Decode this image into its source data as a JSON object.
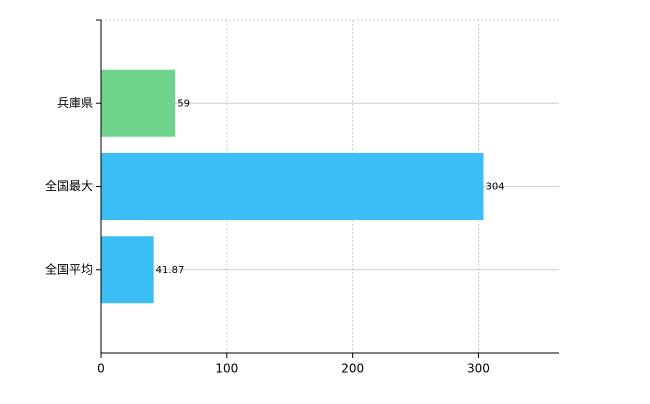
{
  "chart_data": {
    "type": "hbar",
    "categories": [
      "兵庫県",
      "全国最大",
      "全国平均"
    ],
    "values": [
      59,
      304,
      41.87
    ],
    "colors": [
      "#6fd38c",
      "#3bbdf5",
      "#3bbdf5"
    ],
    "xlim": [
      0,
      364
    ],
    "xticks": [
      0,
      100,
      200,
      300
    ],
    "grid": true
  }
}
